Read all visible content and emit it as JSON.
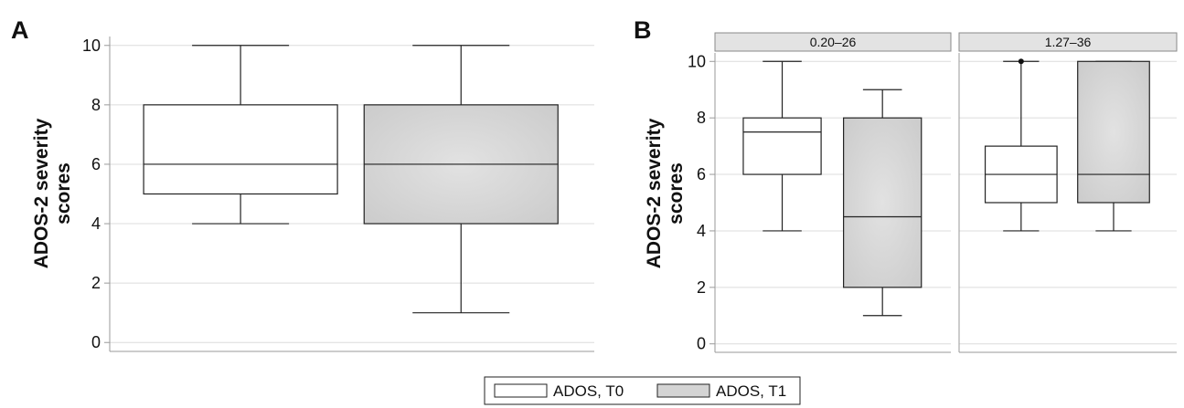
{
  "chart_data": [
    {
      "type": "boxplot",
      "panel_label": "A",
      "ylabel": "ADOS-2 severity scores",
      "ylim": [
        -0.3,
        10.3
      ],
      "yticks": [
        0,
        2,
        4,
        6,
        8,
        10
      ],
      "grid": "horizontal",
      "facets": [
        {
          "strip": "",
          "boxes": [
            {
              "series": "ADOS, T0",
              "min": 4,
              "q1": 5,
              "median": 6,
              "q3": 8,
              "max": 10,
              "outliers": []
            },
            {
              "series": "ADOS, T1",
              "min": 1,
              "q1": 4,
              "median": 6,
              "q3": 8,
              "max": 10,
              "outliers": []
            }
          ]
        }
      ]
    },
    {
      "type": "boxplot",
      "panel_label": "B",
      "ylabel": "ADOS-2 severity scores",
      "ylim": [
        -0.3,
        10.3
      ],
      "yticks": [
        0,
        2,
        4,
        6,
        8,
        10
      ],
      "grid": "horizontal",
      "facets": [
        {
          "strip": "0.20–26",
          "boxes": [
            {
              "series": "ADOS, T0",
              "min": 4,
              "q1": 6,
              "median": 7.5,
              "q3": 8,
              "max": 10,
              "outliers": []
            },
            {
              "series": "ADOS, T1",
              "min": 1,
              "q1": 2,
              "median": 4.5,
              "q3": 8,
              "max": 9,
              "outliers": []
            }
          ]
        },
        {
          "strip": "1.27–36",
          "boxes": [
            {
              "series": "ADOS, T0",
              "min": 4,
              "q1": 5,
              "median": 6,
              "q3": 7,
              "max": 10,
              "outliers": [
                10
              ]
            },
            {
              "series": "ADOS, T1",
              "min": 4,
              "q1": 5,
              "median": 6,
              "q3": 10,
              "max": 10,
              "outliers": []
            }
          ]
        }
      ]
    }
  ],
  "legend": {
    "position": "bottom",
    "items": [
      {
        "label": "ADOS, T0",
        "fill": "#ffffff"
      },
      {
        "label": "ADOS, T1",
        "fill": "#d4d4d4"
      }
    ]
  },
  "colors": {
    "t0_fill": "#ffffff",
    "t1_fill": "#d4d4d4",
    "strip_fill": "#e3e3e3",
    "grid": "#dcdcdc",
    "axis": "#9a9a9a",
    "box_stroke": "#222222"
  }
}
